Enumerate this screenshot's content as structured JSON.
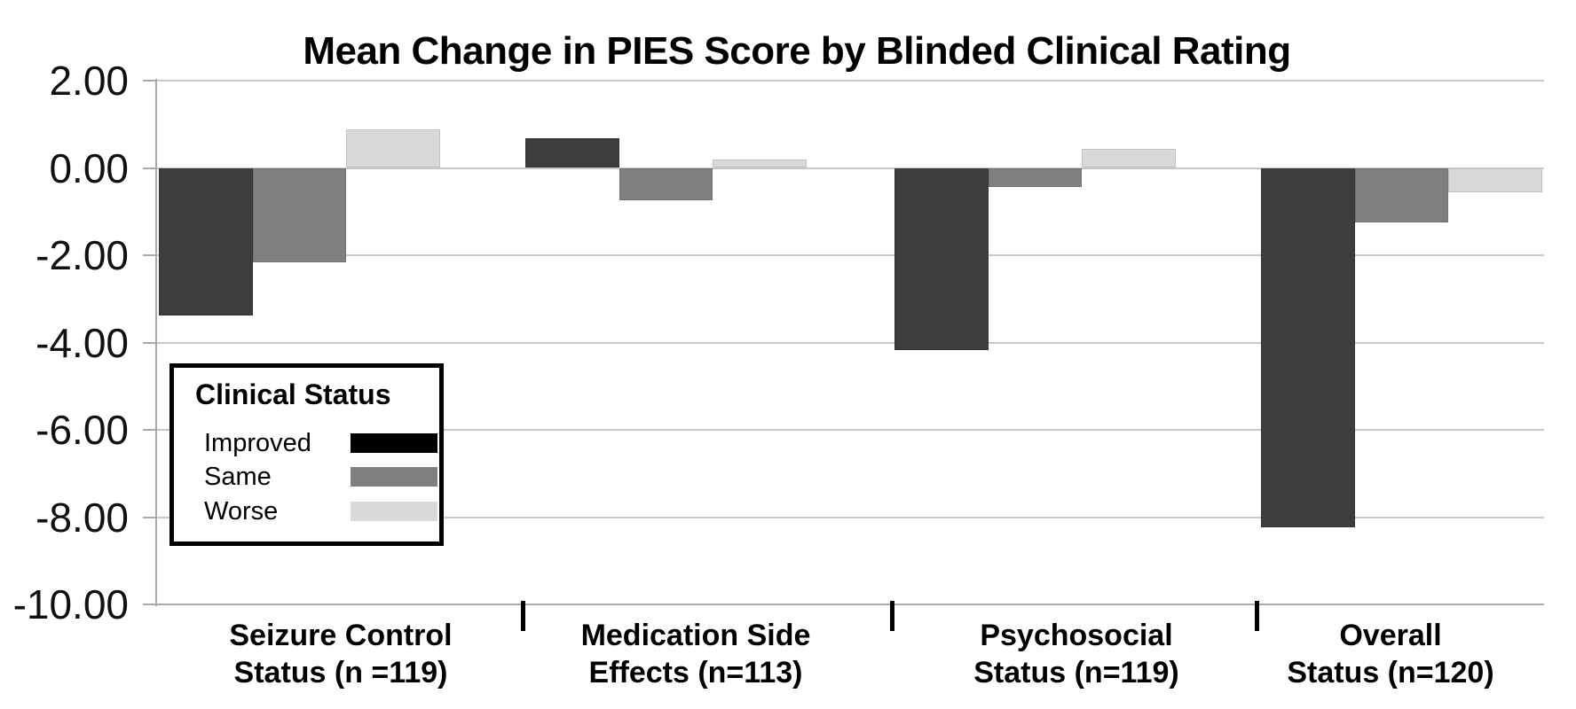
{
  "chart_data": {
    "type": "bar",
    "title": "Mean Change in PIES Score by Blinded Clinical Rating",
    "categories": [
      {
        "line1": "Seizure Control",
        "line2": "Status (n =119)"
      },
      {
        "line1": "Medication Side",
        "line2": "Effects (n=113)"
      },
      {
        "line1": "Psychosocial",
        "line2": "Status (n=119)"
      },
      {
        "line1": "Overall",
        "line2": "Status (n=120)"
      }
    ],
    "series": [
      {
        "name": "Improved",
        "bar_color": "#3D3D3D",
        "legend_swatch_color": "#000000",
        "values": [
          -3.38,
          0.69,
          -4.18,
          -8.24
        ]
      },
      {
        "name": "Same",
        "bar_color": "#7F7F7F",
        "legend_swatch_color": "#7F7F7F",
        "values": [
          -2.16,
          -0.74,
          -0.44,
          -1.24
        ]
      },
      {
        "name": "Worse",
        "bar_color": "#D9D9D9",
        "legend_swatch_color": "#D9D9D9",
        "values": [
          0.89,
          0.19,
          0.44,
          -0.56
        ]
      }
    ],
    "y_axis": {
      "min": -10,
      "max": 2,
      "tick_interval": 2,
      "tick_labels": [
        "2.00",
        "0.00",
        "-2.00",
        "-4.00",
        "-6.00",
        "-8.00",
        "-10.00"
      ]
    },
    "legend": {
      "title": "Clinical Status",
      "position": "inside-left",
      "entries": [
        "Improved",
        "Same",
        "Worse"
      ]
    },
    "grid": true,
    "colors": {
      "background": "#FFFFFF",
      "gridline": "#C8C8C8",
      "axis_line": "#A9A9A9",
      "category_tick": "#000000",
      "text": "#000000"
    }
  }
}
